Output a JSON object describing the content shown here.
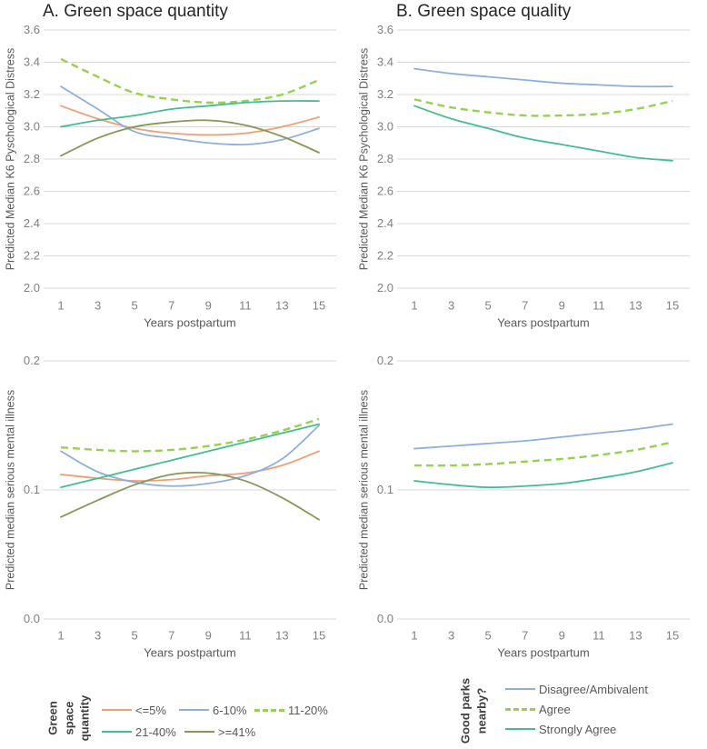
{
  "panels": {
    "a": {
      "title": "A. Green space quantity"
    },
    "b": {
      "title": "B. Green space quality"
    }
  },
  "colors": {
    "orange": "#F09E76",
    "blue": "#8CB0DC",
    "lime_green": "#97D152",
    "green": "#44BE8E",
    "olive": "#87975A",
    "gridline": "#D9D9D9",
    "tick_text": "#808080",
    "axis_text": "#595959",
    "title_text": "#262626",
    "legend_text": "#595959",
    "legend_heading_text": "#3F3F3F"
  },
  "chart_data": [
    {
      "id": "k6-by-green-space-quantity",
      "panel": "A",
      "type": "line",
      "xlabel": "Years postpartum",
      "ylabel": "Predicted Median K6 Pyschological Distress",
      "x": [
        1,
        3,
        5,
        7,
        9,
        11,
        13,
        15
      ],
      "xticks": [
        1,
        3,
        5,
        7,
        9,
        11,
        13,
        15
      ],
      "ylim": [
        2.0,
        3.6
      ],
      "yticks": [
        3.6,
        3.4,
        3.2,
        3.0,
        2.8,
        2.6,
        2.4,
        2.2,
        2.0
      ],
      "grid": true,
      "series": [
        {
          "name": "<=5%",
          "color": "orange",
          "dash": false,
          "values": [
            3.13,
            3.05,
            2.99,
            2.96,
            2.95,
            2.96,
            3.0,
            3.06
          ]
        },
        {
          "name": "6-10%",
          "color": "blue",
          "dash": false,
          "values": [
            3.25,
            3.11,
            2.97,
            2.93,
            2.9,
            2.89,
            2.92,
            2.99
          ]
        },
        {
          "name": "11-20%",
          "color": "lime_green",
          "dash": true,
          "values": [
            3.42,
            3.31,
            3.21,
            3.17,
            3.15,
            3.16,
            3.2,
            3.29
          ]
        },
        {
          "name": "21-40%",
          "color": "green",
          "dash": false,
          "values": [
            3.0,
            3.04,
            3.07,
            3.11,
            3.13,
            3.15,
            3.16,
            3.16
          ]
        },
        {
          "name": ">=41%",
          "color": "olive",
          "dash": false,
          "values": [
            2.82,
            2.93,
            3.0,
            3.03,
            3.04,
            3.01,
            2.94,
            2.84
          ]
        }
      ]
    },
    {
      "id": "k6-by-green-space-quality",
      "panel": "B",
      "type": "line",
      "xlabel": "Years postpartum",
      "ylabel": "Predicted Median K6 Psychological Distress",
      "x": [
        1,
        3,
        5,
        7,
        9,
        11,
        13,
        15
      ],
      "xticks": [
        1,
        3,
        5,
        7,
        9,
        11,
        13,
        15
      ],
      "ylim": [
        2.0,
        3.6
      ],
      "yticks": [
        3.6,
        3.4,
        3.2,
        3.0,
        2.8,
        2.6,
        2.4,
        2.2,
        2.0
      ],
      "grid": true,
      "series": [
        {
          "name": "Disagree/Ambivalent",
          "color": "blue",
          "dash": false,
          "values": [
            3.36,
            3.33,
            3.31,
            3.29,
            3.27,
            3.26,
            3.25,
            3.25
          ]
        },
        {
          "name": "Agree",
          "color": "lime_green",
          "dash": true,
          "values": [
            3.17,
            3.12,
            3.09,
            3.07,
            3.07,
            3.08,
            3.11,
            3.16
          ]
        },
        {
          "name": "Strongly Agree",
          "color": "green",
          "dash": false,
          "values": [
            3.13,
            3.05,
            2.99,
            2.93,
            2.89,
            2.85,
            2.81,
            2.79
          ]
        }
      ]
    },
    {
      "id": "smi-by-green-space-quantity",
      "panel": "A",
      "type": "line",
      "xlabel": "Years postpartum",
      "ylabel": "Predicted median serious mental illness",
      "x": [
        1,
        3,
        5,
        7,
        9,
        11,
        13,
        15
      ],
      "xticks": [
        1,
        3,
        5,
        7,
        9,
        11,
        13,
        15
      ],
      "ylim": [
        0.0,
        0.2
      ],
      "yticks": [
        0.2,
        0.1,
        0.0
      ],
      "grid": true,
      "series": [
        {
          "name": "<=5%",
          "color": "orange",
          "dash": false,
          "values": [
            0.112,
            0.109,
            0.107,
            0.108,
            0.111,
            0.113,
            0.119,
            0.13
          ]
        },
        {
          "name": "6-10%",
          "color": "blue",
          "dash": false,
          "values": [
            0.13,
            0.114,
            0.106,
            0.103,
            0.105,
            0.111,
            0.124,
            0.15
          ]
        },
        {
          "name": "11-20%",
          "color": "lime_green",
          "dash": true,
          "values": [
            0.133,
            0.131,
            0.13,
            0.131,
            0.134,
            0.139,
            0.146,
            0.155
          ]
        },
        {
          "name": "21-40%",
          "color": "green",
          "dash": false,
          "values": [
            0.102,
            0.109,
            0.116,
            0.123,
            0.13,
            0.137,
            0.144,
            0.151
          ]
        },
        {
          "name": ">=41%",
          "color": "olive",
          "dash": false,
          "values": [
            0.079,
            0.092,
            0.104,
            0.112,
            0.113,
            0.107,
            0.094,
            0.077
          ]
        }
      ]
    },
    {
      "id": "smi-by-green-space-quality",
      "panel": "B",
      "type": "line",
      "xlabel": "Years postpartum",
      "ylabel": "Predicted median serious mental illness",
      "x": [
        1,
        3,
        5,
        7,
        9,
        11,
        13,
        15
      ],
      "xticks": [
        1,
        3,
        5,
        7,
        9,
        11,
        13,
        15
      ],
      "ylim": [
        0.0,
        0.2
      ],
      "yticks": [
        0.2,
        0.1,
        0.0
      ],
      "grid": true,
      "series": [
        {
          "name": "Disagree/Ambivalent",
          "color": "blue",
          "dash": false,
          "values": [
            0.132,
            0.134,
            0.136,
            0.138,
            0.141,
            0.144,
            0.147,
            0.151
          ]
        },
        {
          "name": "Agree",
          "color": "lime_green",
          "dash": true,
          "values": [
            0.119,
            0.119,
            0.12,
            0.122,
            0.124,
            0.127,
            0.131,
            0.137
          ]
        },
        {
          "name": "Strongly Agree",
          "color": "green",
          "dash": false,
          "values": [
            0.107,
            0.104,
            0.102,
            0.103,
            0.105,
            0.109,
            0.114,
            0.121
          ]
        }
      ]
    }
  ],
  "legends": {
    "left": {
      "heading_lines": [
        "Green",
        "space",
        "quantity"
      ],
      "items": [
        {
          "label": "<=5%",
          "color": "orange",
          "dash": false
        },
        {
          "label": "6-10%",
          "color": "blue",
          "dash": false
        },
        {
          "label": "11-20%",
          "color": "lime_green",
          "dash": true
        },
        {
          "label": "21-40%",
          "color": "green",
          "dash": false
        },
        {
          "label": ">=41%",
          "color": "olive",
          "dash": false
        }
      ]
    },
    "right": {
      "heading_lines": [
        "Good parks",
        "nearby?"
      ],
      "items": [
        {
          "label": "Disagree/Ambivalent",
          "color": "blue",
          "dash": false
        },
        {
          "label": "Agree",
          "color": "lime_green",
          "dash": true
        },
        {
          "label": "Strongly Agree",
          "color": "green",
          "dash": false
        }
      ]
    }
  }
}
